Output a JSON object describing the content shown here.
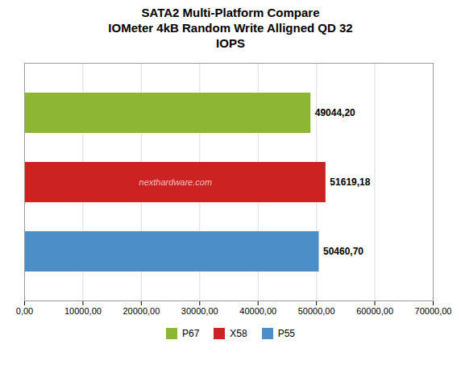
{
  "chart_data": {
    "type": "bar",
    "orientation": "horizontal",
    "title": "SATA2 Multi-Platform Compare\nIOMeter 4kB Random Write Alligned QD 32\nIOPS",
    "categories": [
      "P67",
      "X58",
      "P55"
    ],
    "values": [
      49044.2,
      51619.18,
      50460.7
    ],
    "value_labels": [
      "49044,20",
      "51619,18",
      "50460,70"
    ],
    "data_labels": true,
    "colors": [
      "#8db634",
      "#cc2222",
      "#4b8ec8"
    ],
    "xlim": [
      0,
      70000
    ],
    "xticks": [
      {
        "value": 0,
        "label": "0,00"
      },
      {
        "value": 10000,
        "label": "10000,00"
      },
      {
        "value": 20000,
        "label": "20000,00"
      },
      {
        "value": 30000,
        "label": "30000,00"
      },
      {
        "value": 40000,
        "label": "40000,00"
      },
      {
        "value": 50000,
        "label": "50000,00"
      },
      {
        "value": 60000,
        "label": "60000,00"
      },
      {
        "value": 70000,
        "label": "70000,00"
      }
    ],
    "grid": true,
    "tick_labels": "x",
    "legend": "bottom",
    "annotations": [
      {
        "text": "nexthardware.com",
        "category": "X58"
      }
    ]
  }
}
